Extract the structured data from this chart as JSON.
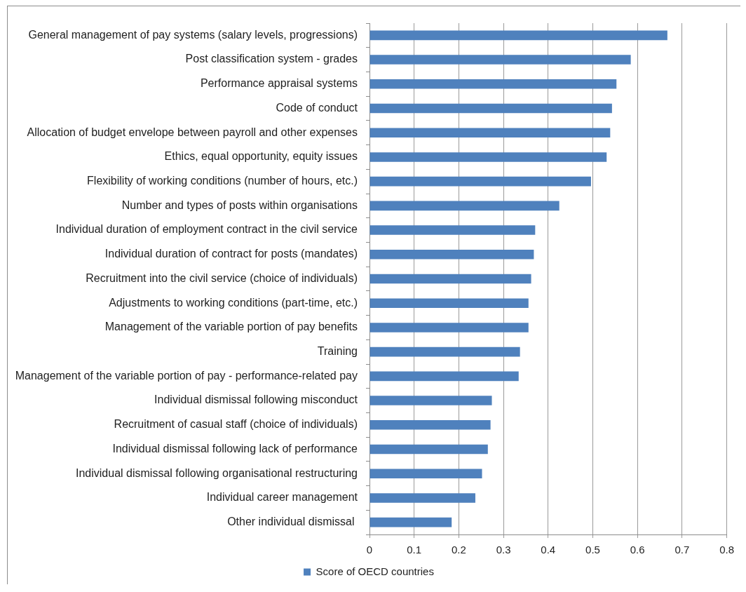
{
  "chart_data": {
    "type": "bar",
    "orientation": "horizontal",
    "categories": [
      "General management of pay systems (salary levels, progressions)",
      "Post classification system - grades",
      "Performance appraisal systems",
      "Code of conduct",
      "Allocation of budget envelope between payroll and other expenses",
      "Ethics, equal opportunity, equity issues",
      "Flexibility of working conditions (number of hours, etc.)",
      "Number and types of posts within organisations",
      "Individual duration of employment contract in the civil service",
      "Individual duration of contract for posts (mandates)",
      "Recruitment into the civil service (choice of individuals)",
      "Adjustments to working conditions (part-time, etc.)",
      "Management of the variable portion of pay benefits",
      "Training",
      "Management of the variable portion of pay - performance-related pay",
      "Individual dismissal following misconduct",
      "Recruitment of casual staff (choice of individuals)",
      "Individual dismissal following lack of performance",
      "Individual dismissal following organisational restructuring",
      "Individual career management",
      "Other individual dismissal "
    ],
    "series": [
      {
        "name": "Score of OECD countries",
        "color": "#4f81bd",
        "values": [
          0.667,
          0.585,
          0.553,
          0.543,
          0.539,
          0.531,
          0.496,
          0.425,
          0.371,
          0.368,
          0.362,
          0.356,
          0.356,
          0.337,
          0.334,
          0.274,
          0.271,
          0.265,
          0.252,
          0.237,
          0.184
        ]
      }
    ],
    "xlim": [
      0,
      0.8
    ],
    "xticks": [
      0,
      0.1,
      0.2,
      0.3,
      0.4,
      0.5,
      0.6,
      0.7,
      0.8
    ],
    "grid": "x",
    "legend": "bottom"
  }
}
